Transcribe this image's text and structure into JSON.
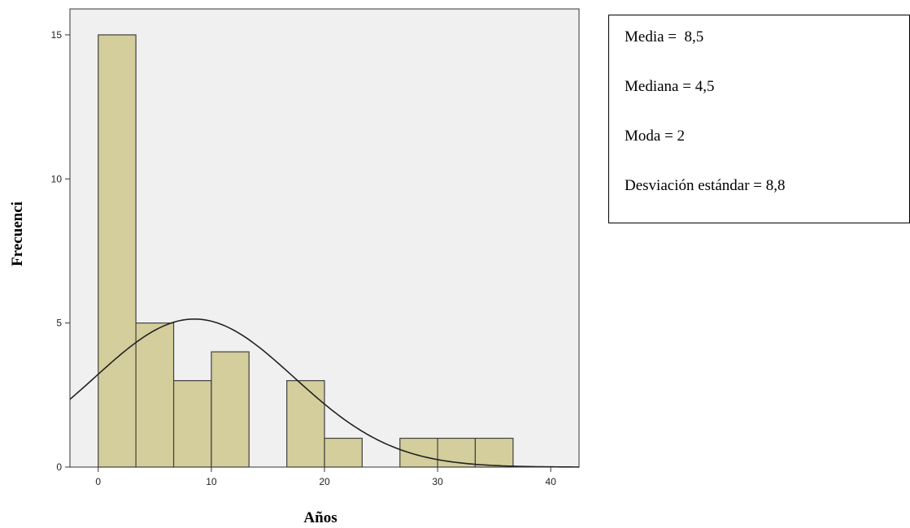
{
  "chart_data": {
    "type": "bar",
    "subtype": "histogram",
    "xlabel": "Años",
    "ylabel": "Frecuenci",
    "xlim": [
      -2.5,
      42.5
    ],
    "ylim": [
      0,
      15.9
    ],
    "x_ticks": [
      0,
      10,
      20,
      30,
      40
    ],
    "y_ticks": [
      0,
      5,
      10,
      15
    ],
    "bins": [
      {
        "start": 0,
        "end": 3.33,
        "count": 15
      },
      {
        "start": 3.33,
        "end": 6.67,
        "count": 5
      },
      {
        "start": 6.67,
        "end": 10,
        "count": 3
      },
      {
        "start": 10,
        "end": 13.33,
        "count": 4
      },
      {
        "start": 16.67,
        "end": 20,
        "count": 3
      },
      {
        "start": 20,
        "end": 23.33,
        "count": 1
      },
      {
        "start": 26.67,
        "end": 30,
        "count": 1
      },
      {
        "start": 30,
        "end": 33.33,
        "count": 1
      },
      {
        "start": 33.33,
        "end": 36.67,
        "count": 1
      }
    ],
    "normal_curve": {
      "mean": 8.5,
      "std": 8.8,
      "n": 34,
      "bin_width": 3.333
    },
    "grid": false,
    "colors": {
      "bar_fill": "#d3ce9b",
      "bar_stroke": "#404040",
      "plot_bg": "#f0f0f0",
      "curve": "#222222"
    }
  },
  "stats": [
    "Media =  8,5",
    "Mediana = 4,5",
    "Moda = 2",
    "Desviación estándar = 8,8"
  ]
}
